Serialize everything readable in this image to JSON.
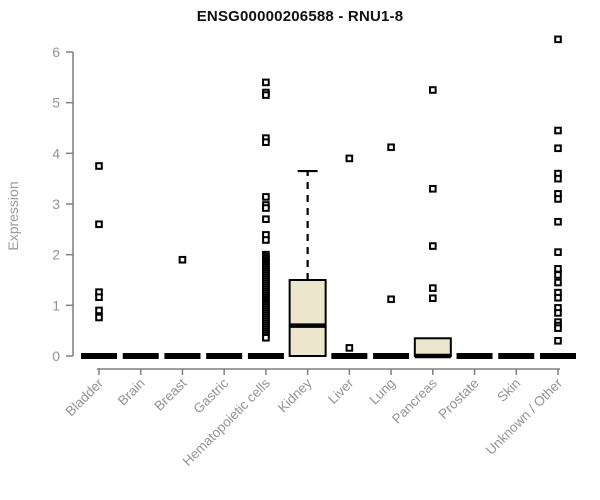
{
  "chart_data": {
    "type": "boxplot",
    "title": "ENSG00000206588 - RNU1-8",
    "ylabel": "Expression",
    "xlabel": "",
    "ylim": [
      0,
      6
    ],
    "yticks": [
      0,
      1,
      2,
      3,
      4,
      5,
      6
    ],
    "grid": false,
    "legend": "none",
    "box_fill_color": "#ece6cc",
    "box_line_color": "#000000",
    "axis_color": "#7f7f7f",
    "axis_text_color": "#949494",
    "categories": [
      "Bladder",
      "Brain",
      "Breast",
      "Gastric",
      "Hematopoietic cells",
      "Kidney",
      "Liver",
      "Lung",
      "Pancreas",
      "Prostate",
      "Skin",
      "Unknown / Other"
    ],
    "boxes": [
      {
        "category": "Bladder",
        "q1": 0,
        "median": 0,
        "q3": 0,
        "whisker_low": 0,
        "whisker_high": 0,
        "outliers": [
          3.75,
          2.6,
          1.26,
          1.16,
          0.9,
          0.76
        ]
      },
      {
        "category": "Brain",
        "q1": 0,
        "median": 0,
        "q3": 0,
        "whisker_low": 0,
        "whisker_high": 0,
        "outliers": []
      },
      {
        "category": "Breast",
        "q1": 0,
        "median": 0,
        "q3": 0,
        "whisker_low": 0,
        "whisker_high": 0,
        "outliers": [
          1.9
        ]
      },
      {
        "category": "Gastric",
        "q1": 0,
        "median": 0,
        "q3": 0,
        "whisker_low": 0,
        "whisker_high": 0,
        "outliers": []
      },
      {
        "category": "Hematopoietic cells",
        "q1": 0,
        "median": 0,
        "q3": 0,
        "whisker_low": 0,
        "whisker_high": 0,
        "outliers": [
          5.4,
          5.2,
          5.15,
          4.3,
          4.22,
          3.14,
          2.98,
          2.92,
          2.7,
          2.39,
          2.29,
          2.0,
          1.96,
          1.92,
          1.88,
          1.84,
          1.8,
          1.76,
          1.72,
          1.68,
          1.64,
          1.6,
          1.56,
          1.52,
          1.48,
          1.44,
          1.4,
          1.36,
          1.32,
          1.28,
          1.24,
          1.2,
          1.16,
          1.12,
          1.08,
          1.04,
          1.0,
          0.96,
          0.92,
          0.88,
          0.84,
          0.8,
          0.76,
          0.72,
          0.68,
          0.64,
          0.6,
          0.56,
          0.52,
          0.48,
          0.44,
          0.4,
          0.36
        ]
      },
      {
        "category": "Kidney",
        "q1": 0,
        "median": 0.6,
        "q3": 1.5,
        "whisker_low": 0,
        "whisker_high": 3.65,
        "outliers": []
      },
      {
        "category": "Liver",
        "q1": 0,
        "median": 0,
        "q3": 0,
        "whisker_low": 0,
        "whisker_high": 0,
        "outliers": [
          3.9,
          0.16
        ]
      },
      {
        "category": "Lung",
        "q1": 0,
        "median": 0,
        "q3": 0,
        "whisker_low": 0,
        "whisker_high": 0,
        "outliers": [
          4.12,
          1.12
        ]
      },
      {
        "category": "Pancreas",
        "q1": 0,
        "median": 0,
        "q3": 0.35,
        "whisker_low": 0,
        "whisker_high": 0.35,
        "outliers": [
          5.25,
          3.3,
          2.17,
          1.34,
          1.14
        ]
      },
      {
        "category": "Prostate",
        "q1": 0,
        "median": 0,
        "q3": 0,
        "whisker_low": 0,
        "whisker_high": 0,
        "outliers": []
      },
      {
        "category": "Skin",
        "q1": 0,
        "median": 0,
        "q3": 0,
        "whisker_low": 0,
        "whisker_high": 0,
        "outliers": []
      },
      {
        "category": "Unknown / Other",
        "q1": 0,
        "median": 0,
        "q3": 0,
        "whisker_low": 0,
        "whisker_high": 0,
        "outliers": [
          6.25,
          4.45,
          4.1,
          3.6,
          3.5,
          3.2,
          3.1,
          2.65,
          2.05,
          1.72,
          1.6,
          1.45,
          1.25,
          1.15,
          0.95,
          0.85,
          0.67,
          0.6,
          0.55,
          0.3
        ]
      }
    ]
  }
}
